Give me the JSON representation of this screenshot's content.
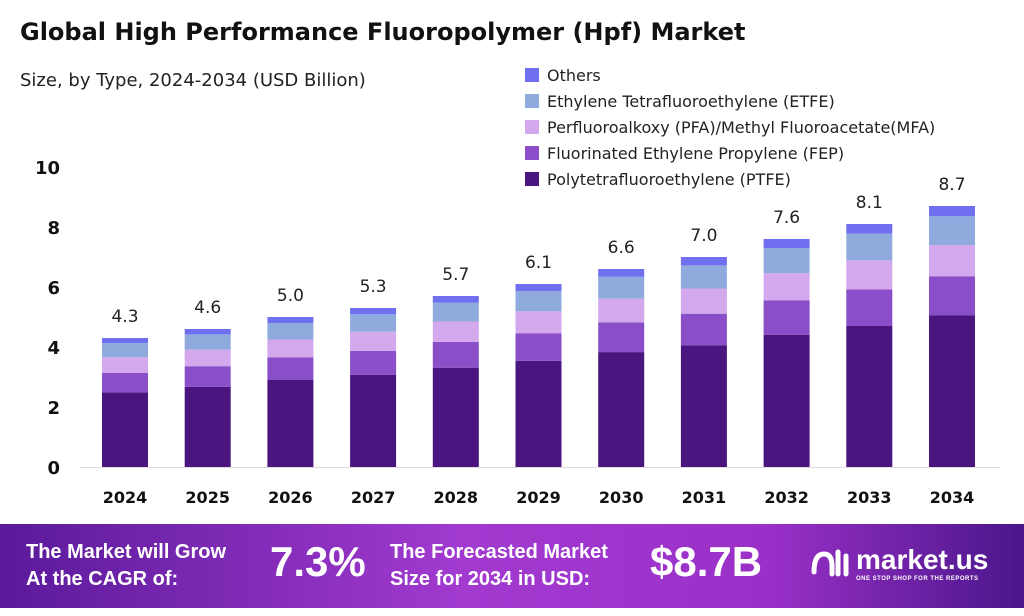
{
  "chart_data": {
    "type": "bar",
    "stacked": true,
    "title": "Global High Performance Fluoropolymer (Hpf) Market",
    "subtitle": "Size, by Type, 2024-2034 (USD Billion)",
    "categories": [
      "2024",
      "2025",
      "2026",
      "2027",
      "2028",
      "2029",
      "2030",
      "2031",
      "2032",
      "2033",
      "2034"
    ],
    "totals": [
      "4.3",
      "4.6",
      "5.0",
      "5.3",
      "5.7",
      "6.1",
      "6.6",
      "7.0",
      "7.6",
      "8.1",
      "8.7"
    ],
    "ylim": [
      0,
      10
    ],
    "yticks": [
      "0",
      "2",
      "4",
      "6",
      "8",
      "10"
    ],
    "grid": false,
    "legend_placement": "top-right",
    "series": [
      {
        "name": "Polytetrafluoroethylene (PTFE)",
        "color": "#4b1580",
        "values": [
          2.49,
          2.67,
          2.9,
          3.07,
          3.31,
          3.54,
          3.83,
          4.06,
          4.41,
          4.7,
          5.05
        ]
      },
      {
        "name": "Fluorinated Ethylene Propylene (FEP)",
        "color": "#8a4ec8",
        "values": [
          0.65,
          0.69,
          0.75,
          0.8,
          0.86,
          0.92,
          0.99,
          1.05,
          1.14,
          1.22,
          1.31
        ]
      },
      {
        "name": "Perfluoroalkoxy (PFA)/Methyl Fluoroacetate(MFA)",
        "color": "#d4a8ec",
        "values": [
          0.52,
          0.55,
          0.6,
          0.64,
          0.68,
          0.73,
          0.79,
          0.84,
          0.91,
          0.97,
          1.04
        ]
      },
      {
        "name": "Ethylene Tetrafluoroethylene (ETFE)",
        "color": "#8faadc",
        "values": [
          0.47,
          0.51,
          0.55,
          0.58,
          0.63,
          0.67,
          0.73,
          0.77,
          0.84,
          0.89,
          0.96
        ]
      },
      {
        "name": "Others",
        "color": "#6f6ff0",
        "values": [
          0.17,
          0.18,
          0.2,
          0.21,
          0.22,
          0.24,
          0.26,
          0.28,
          0.3,
          0.32,
          0.34
        ]
      }
    ]
  },
  "banner": {
    "cagr_text_1": "The Market will Grow",
    "cagr_text_2": "At the CAGR of:",
    "cagr_value": "7.3%",
    "forecast_text_1": "The Forecasted Market",
    "forecast_text_2": "Size for 2034 in USD:",
    "forecast_value": "$8.7B",
    "logo_name": "market.us",
    "logo_tagline": "ONE STOP SHOP FOR THE REPORTS"
  }
}
